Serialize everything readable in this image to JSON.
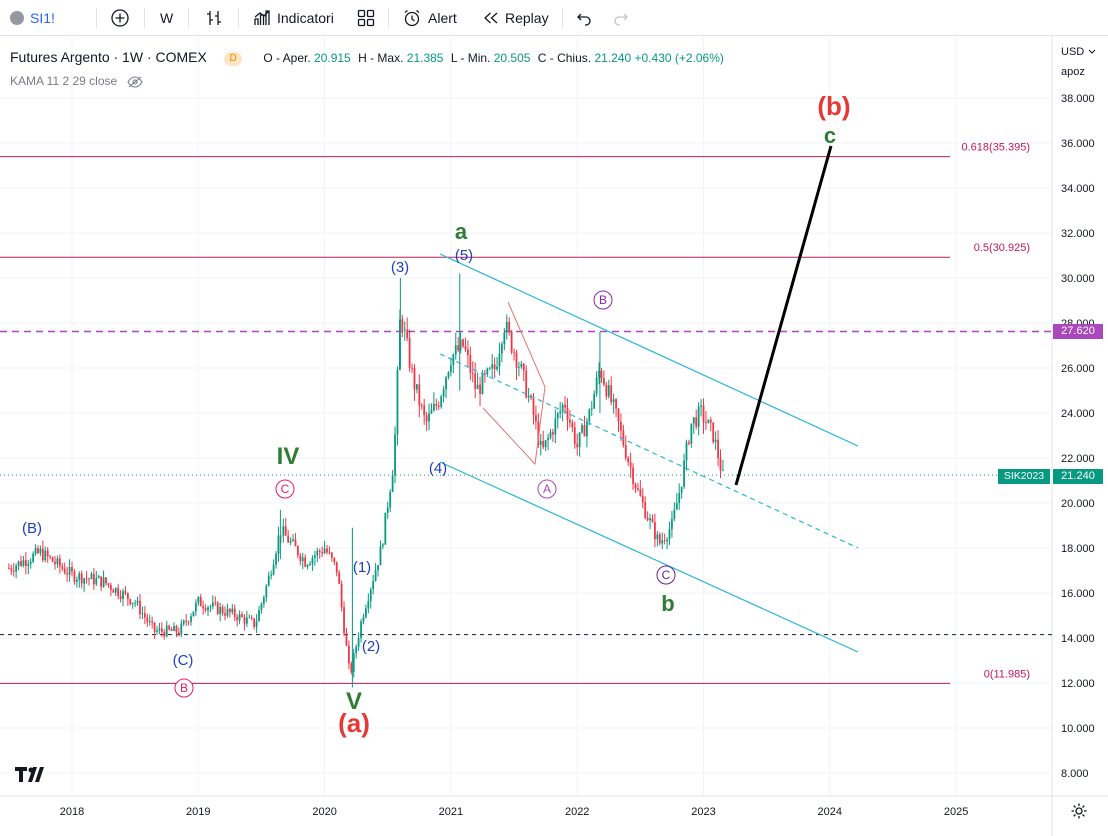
{
  "toolbar": {
    "symbol": "SI1!",
    "interval": "W",
    "indicators": "Indicatori",
    "alert": "Alert",
    "replay": "Replay"
  },
  "legend": {
    "title": "Futures Argento · 1W · COMEX",
    "delay_badge": "D",
    "o_label": "O - Aper.",
    "o_value": "20.915",
    "h_label": "H - Max.",
    "h_value": "21.385",
    "l_label": "L - Min.",
    "l_value": "20.505",
    "c_label": "C - Chius.",
    "c_value": "21.240",
    "change": "+0.430 (+2.06%)",
    "indicator": "KAMA 11 2 29 close"
  },
  "price_axis": {
    "currency": "USD",
    "scale_mode": "apoz",
    "ticks": [
      "38.000",
      "36.000",
      "34.000",
      "32.000",
      "30.000",
      "28.000",
      "26.000",
      "24.000",
      "22.000",
      "20.000",
      "18.000",
      "16.000",
      "14.000",
      "12.000",
      "10.000",
      "8.000"
    ],
    "level_label": "27.620",
    "symbol_label": "SIK2023",
    "last_price": "21.240"
  },
  "time_axis": {
    "ticks": [
      "2018",
      "2019",
      "2020",
      "2021",
      "2022",
      "2023",
      "2024",
      "2025"
    ]
  },
  "fib_levels": [
    {
      "label": "0.618(35.395)",
      "price": 35.395
    },
    {
      "label": "0.5(30.925)",
      "price": 30.925
    },
    {
      "label": "0(11.985)",
      "price": 11.985
    }
  ],
  "wave_labels": {
    "b_big": "(b)",
    "c_green": "c",
    "a_green": "a",
    "b_green": "b",
    "IV": "IV",
    "V": "V",
    "a_red": "(a)",
    "w3": "(3)",
    "w5": "(5)",
    "w4": "(4)",
    "w1": "(1)",
    "w2": "(2)",
    "B_paren": "(B)",
    "C_paren": "(C)",
    "C_circ_pink": "C",
    "B_circ_pink": "B",
    "A_circ": "A",
    "B_circ": "B",
    "C_circ": "C"
  },
  "colors": {
    "up": "#089981",
    "down": "#f23645",
    "fib_line": "#c2185b",
    "channel": "#29b6d6",
    "level_dashed": "#ab47bc",
    "green_wave": "#2e7d32",
    "red_wave": "#e53935",
    "blue_wave": "#1e3fbf"
  }
}
